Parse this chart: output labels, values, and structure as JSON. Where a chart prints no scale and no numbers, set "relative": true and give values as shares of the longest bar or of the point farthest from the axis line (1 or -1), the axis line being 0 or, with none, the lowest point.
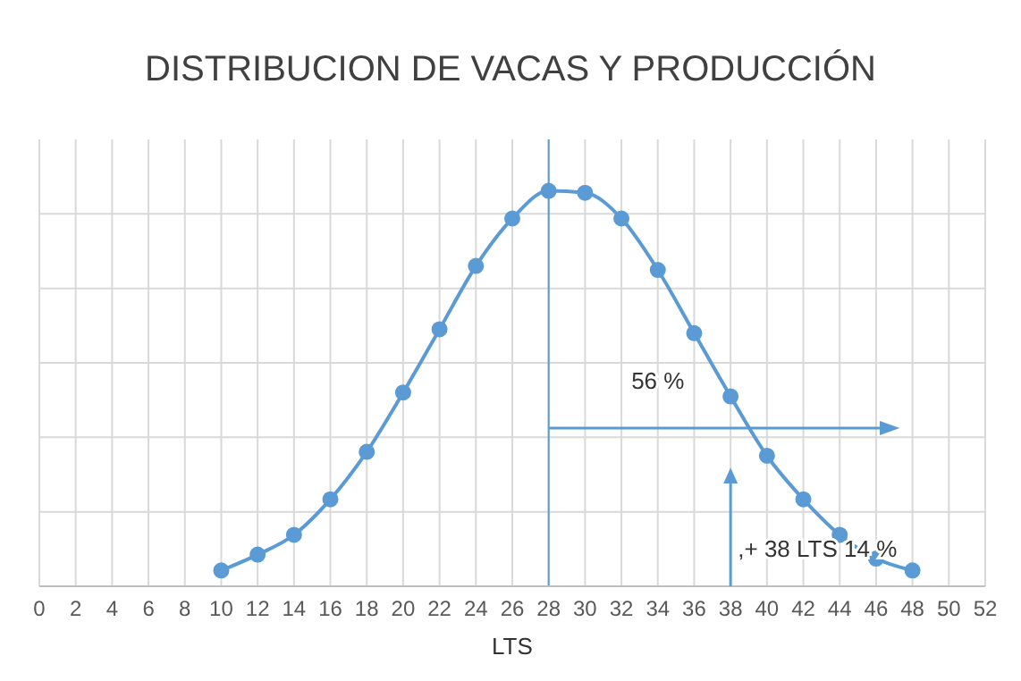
{
  "chart_data": {
    "type": "line",
    "title": "DISTRIBUCION DE VACAS Y PRODUCCIÓN",
    "xlabel": "LTS",
    "relative": true,
    "x": [
      10,
      12,
      14,
      16,
      18,
      20,
      22,
      24,
      26,
      28,
      30,
      32,
      34,
      36,
      38,
      40,
      42,
      44,
      46,
      48
    ],
    "series": [
      {
        "color": "#5b9bd5",
        "values": [
          0.04,
          0.08,
          0.13,
          0.22,
          0.34,
          0.49,
          0.65,
          0.81,
          0.93,
          1,
          0.995,
          0.93,
          0.8,
          0.64,
          0.48,
          0.33,
          0.22,
          0.13,
          0.07,
          0.04
        ]
      }
    ],
    "xlim": [
      0,
      52
    ],
    "xticks": [
      0,
      2,
      4,
      6,
      8,
      10,
      12,
      14,
      16,
      18,
      20,
      22,
      24,
      26,
      28,
      30,
      32,
      34,
      36,
      38,
      40,
      42,
      44,
      46,
      48,
      50,
      52
    ],
    "ref_lines": [
      {
        "axis": "x",
        "value": 28,
        "color": "#5b9bd5"
      }
    ],
    "annotations": [
      "56 %",
      ",+ 38  LTS 14 %"
    ],
    "grid": true,
    "marker": "circle",
    "line_style": "solid"
  }
}
